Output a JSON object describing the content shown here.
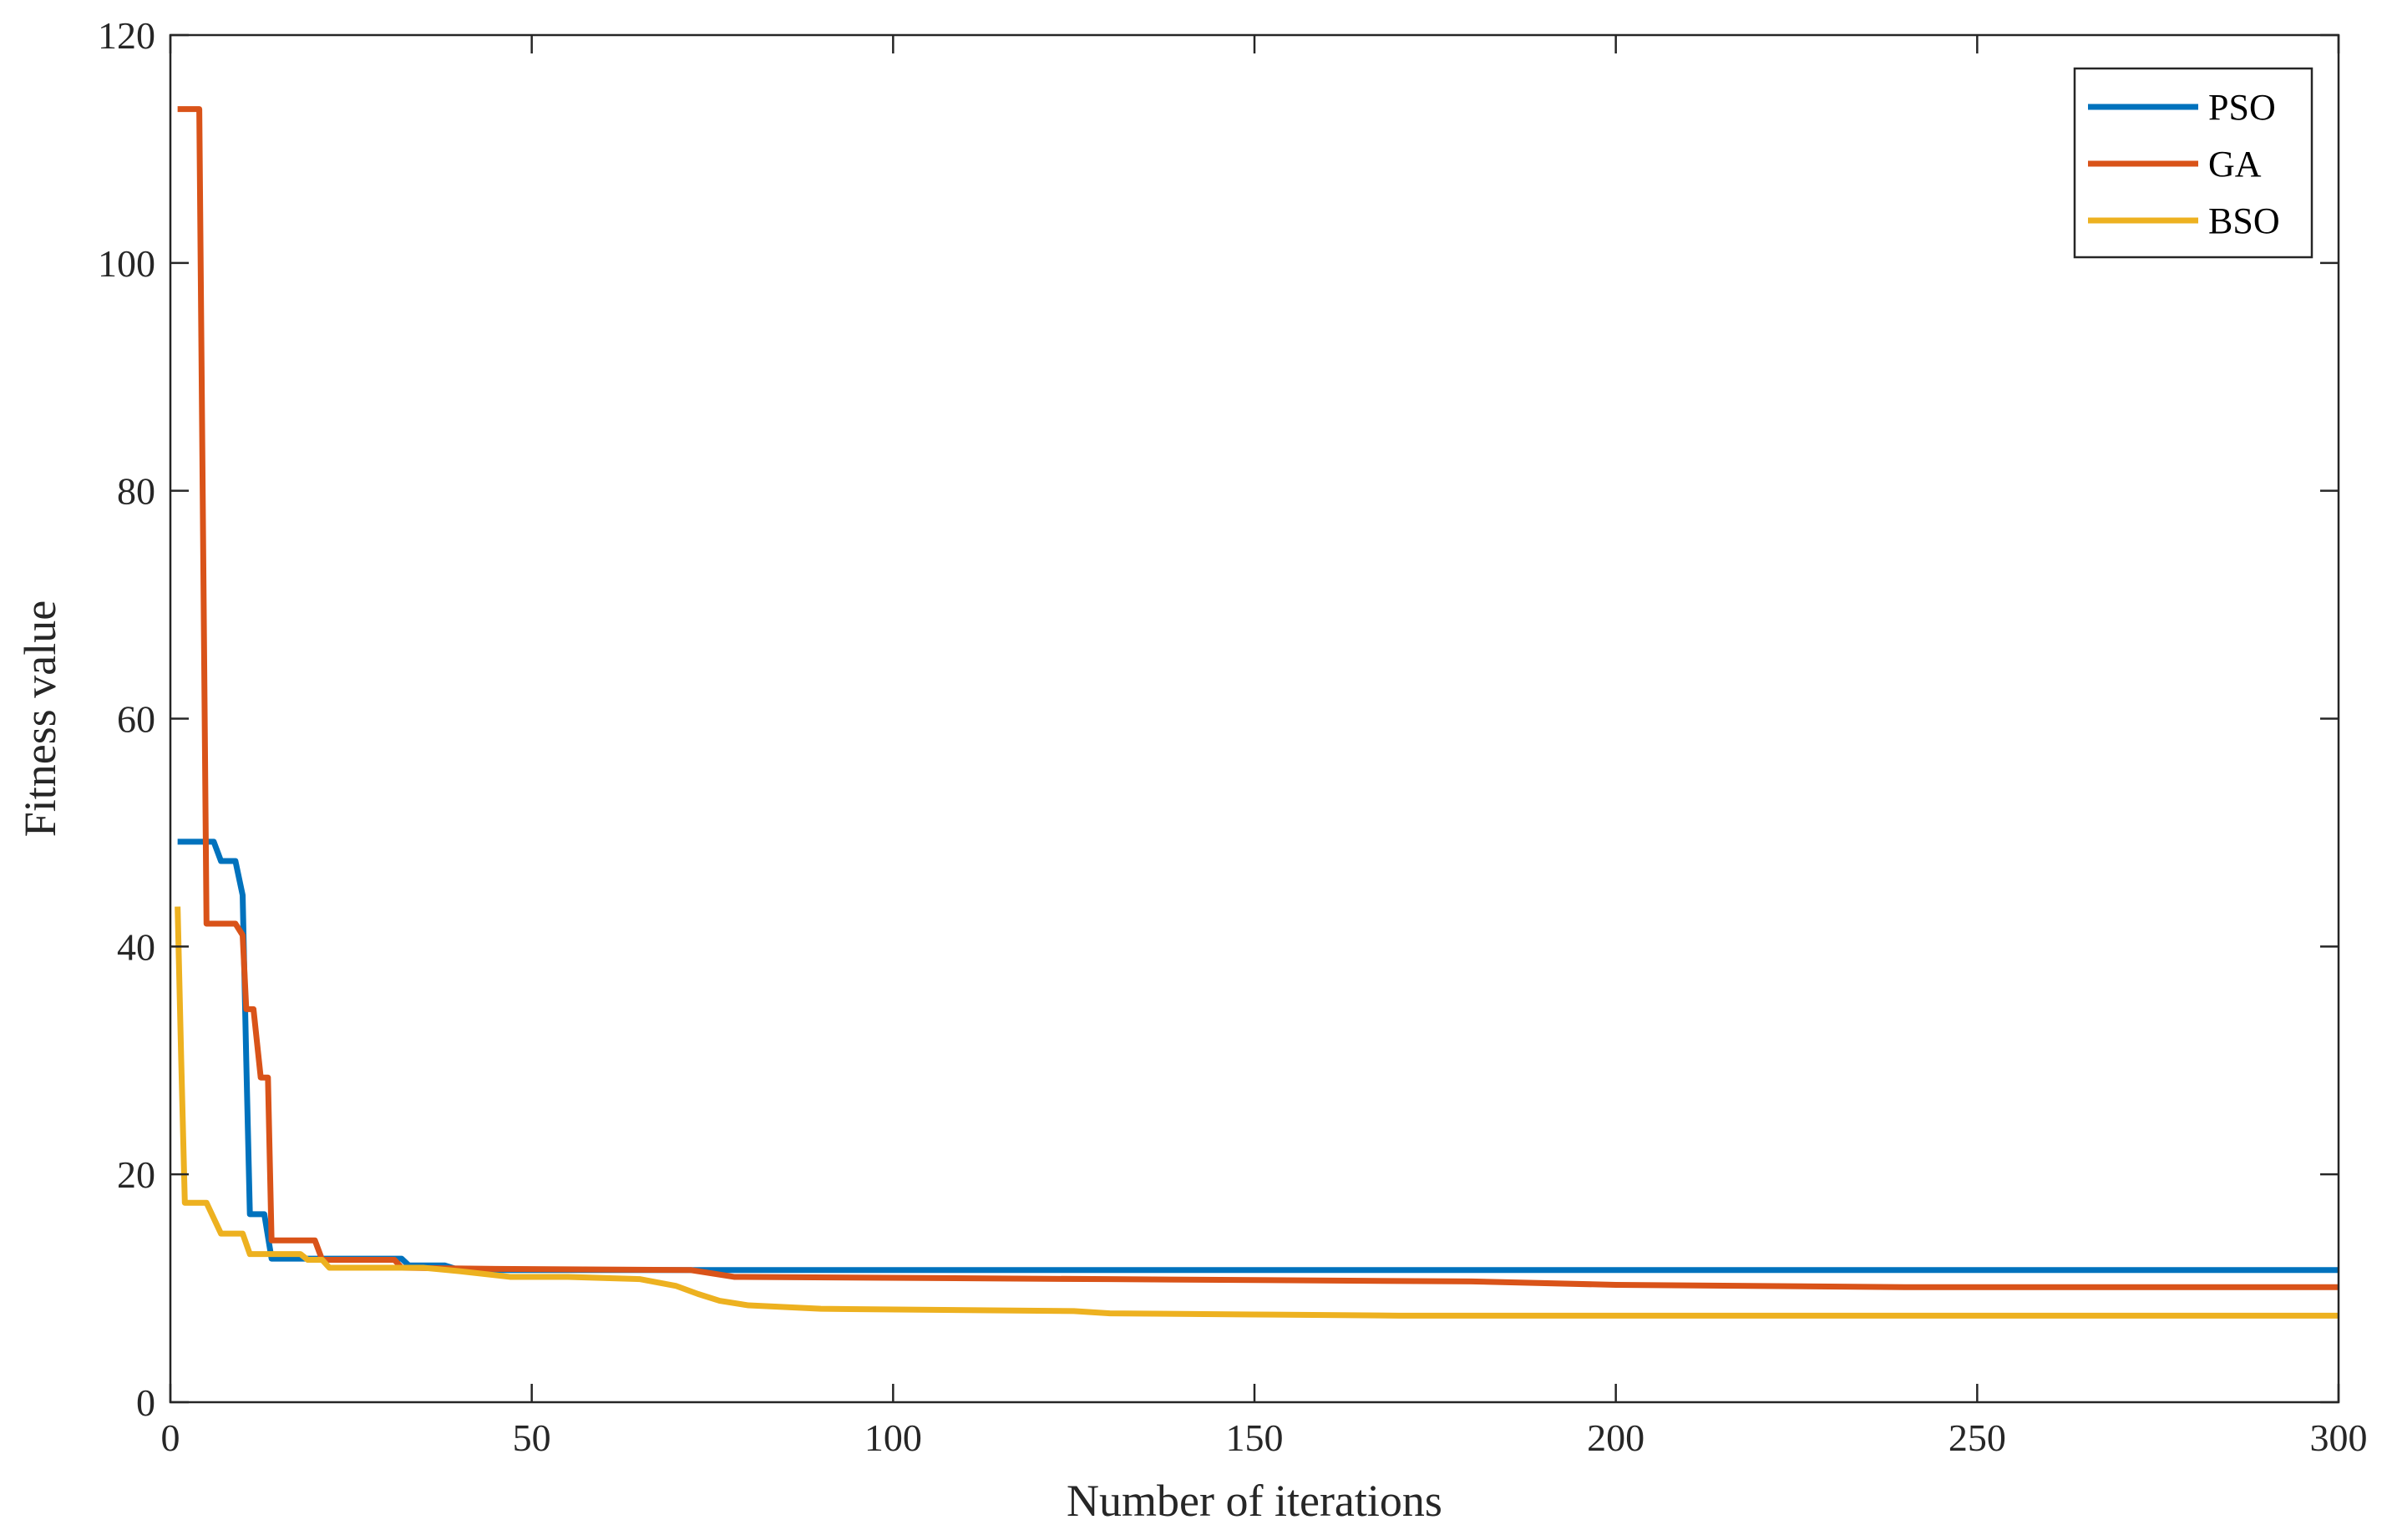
{
  "chart_data": {
    "type": "line",
    "title": "",
    "xlabel": "Number of iterations",
    "ylabel": "Fitness value",
    "xlim": [
      0,
      300
    ],
    "ylim": [
      0,
      120
    ],
    "x_ticks": [
      0,
      50,
      100,
      150,
      200,
      250,
      300
    ],
    "y_ticks": [
      0,
      20,
      40,
      60,
      80,
      100,
      120
    ],
    "x_tick_labels": [
      "0",
      "50",
      "100",
      "150",
      "200",
      "250",
      "300"
    ],
    "y_tick_labels": [
      "0",
      "20",
      "40",
      "60",
      "80",
      "100",
      "120"
    ],
    "grid": false,
    "legend_position": "top-right",
    "series": [
      {
        "name": "PSO",
        "color": "#0072BD",
        "points": [
          [
            1,
            49.2
          ],
          [
            6,
            49.2
          ],
          [
            7,
            47.5
          ],
          [
            9,
            47.5
          ],
          [
            10,
            44.5
          ],
          [
            10.5,
            30
          ],
          [
            11,
            16.5
          ],
          [
            13,
            16.5
          ],
          [
            14,
            12.6
          ],
          [
            32,
            12.6
          ],
          [
            33,
            12
          ],
          [
            38,
            12
          ],
          [
            40,
            11.6
          ],
          [
            300,
            11.6
          ]
        ]
      },
      {
        "name": "GA",
        "color": "#D95319",
        "points": [
          [
            1,
            113.5
          ],
          [
            4,
            113.5
          ],
          [
            5,
            42
          ],
          [
            9,
            42
          ],
          [
            10,
            41
          ],
          [
            10.5,
            34.5
          ],
          [
            11.5,
            34.5
          ],
          [
            12.5,
            28.5
          ],
          [
            13.5,
            28.5
          ],
          [
            14,
            14.2
          ],
          [
            20,
            14.2
          ],
          [
            21,
            12.5
          ],
          [
            31,
            12.5
          ],
          [
            32,
            11.8
          ],
          [
            45,
            11.7
          ],
          [
            72,
            11.6
          ],
          [
            78,
            11
          ],
          [
            130,
            10.8
          ],
          [
            180,
            10.6
          ],
          [
            200,
            10.3
          ],
          [
            240,
            10.1
          ],
          [
            300,
            10.1
          ]
        ]
      },
      {
        "name": "BSO",
        "color": "#EDB120",
        "points": [
          [
            1,
            43.5
          ],
          [
            1.5,
            30
          ],
          [
            2,
            17.5
          ],
          [
            5,
            17.5
          ],
          [
            7,
            14.8
          ],
          [
            10,
            14.8
          ],
          [
            11,
            13
          ],
          [
            18,
            13
          ],
          [
            19,
            12.5
          ],
          [
            21,
            12.5
          ],
          [
            22,
            11.8
          ],
          [
            30,
            11.8
          ],
          [
            35,
            11.8
          ],
          [
            40,
            11.5
          ],
          [
            47,
            11
          ],
          [
            55,
            11
          ],
          [
            65,
            10.8
          ],
          [
            70,
            10.2
          ],
          [
            73,
            9.5
          ],
          [
            76,
            8.9
          ],
          [
            80,
            8.5
          ],
          [
            90,
            8.2
          ],
          [
            125,
            8.0
          ],
          [
            130,
            7.8
          ],
          [
            150,
            7.7
          ],
          [
            170,
            7.6
          ],
          [
            300,
            7.6
          ]
        ]
      }
    ]
  }
}
